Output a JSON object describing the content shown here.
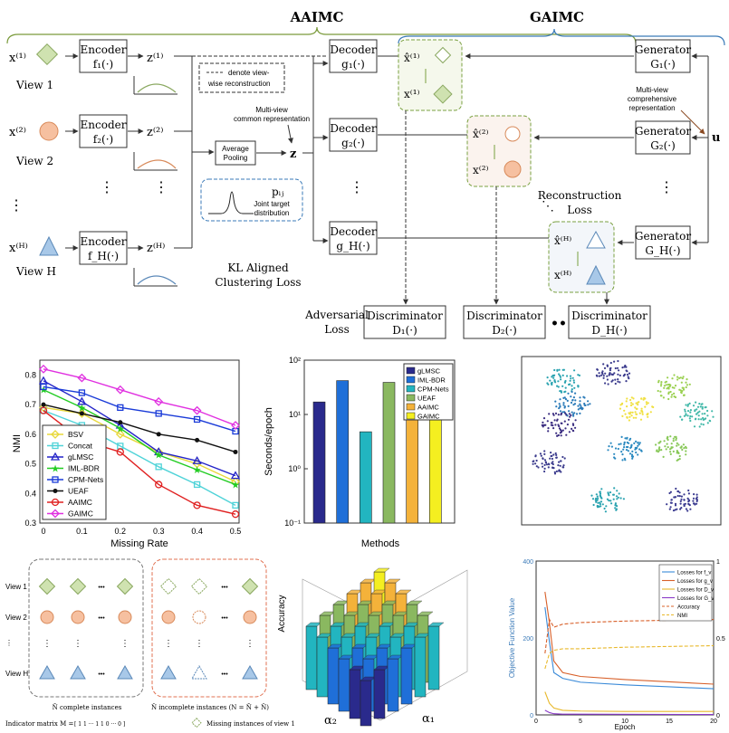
{
  "framework": {
    "title_left": "AAIMC",
    "title_right": "GAIMC",
    "views": [
      {
        "x": "x⁽¹⁾",
        "label": "View 1",
        "encoder": "Encoder",
        "encoder_f": "f₁(·)",
        "z": "z⁽¹⁾"
      },
      {
        "x": "x⁽²⁾",
        "label": "View 2",
        "encoder": "Encoder",
        "encoder_f": "f₂(·)",
        "z": "z⁽²⁾"
      },
      {
        "x": "x⁽ᴴ⁾",
        "label": "View H",
        "encoder": "Encoder",
        "encoder_f": "f_H(·)",
        "z": "z⁽ᴴ⁾"
      }
    ],
    "legend_recon": "denote view-wise reconstruction",
    "common_rep": "Multi-view common representation",
    "z": "z",
    "average_pooling": "Average Pooling",
    "pij": "pᵢⱼ",
    "joint_target": "Joint target distribution",
    "kl_loss": "KL Aligned Clustering Loss",
    "decoders": [
      {
        "name": "Decoder",
        "f": "g₁(·)"
      },
      {
        "name": "Decoder",
        "f": "g₂(·)"
      },
      {
        "name": "Decoder",
        "f": "g_H(·)"
      }
    ],
    "generators": [
      {
        "name": "Generator",
        "f": "G₁(·)"
      },
      {
        "name": "Generator",
        "f": "G₂(·)"
      },
      {
        "name": "Generator",
        "f": "G_H(·)"
      }
    ],
    "comprehensive": "Multi-view comprehensive representation",
    "u": "u",
    "recon_loss": "Reconstruction Loss",
    "adv_loss": "Adversarial Loss",
    "discriminators": [
      {
        "name": "Discriminator",
        "f": "D₁(·)"
      },
      {
        "name": "Discriminator",
        "f": "D₂(·)"
      },
      {
        "name": "Discriminator",
        "f": "D_H(·)"
      }
    ],
    "pairs": [
      {
        "hat": "x̂⁽¹⁾",
        "x": "x⁽¹⁾"
      },
      {
        "hat": "x̂⁽²⁾",
        "x": "x⁽²⁾"
      },
      {
        "hat": "x̂⁽ᴴ⁾",
        "x": "x⁽ᴴ⁾"
      }
    ],
    "vdots": "⋮",
    "dots": "•••"
  },
  "nmi_chart": {
    "type": "line",
    "xlabel": "Missing Rate",
    "ylabel": "NMI",
    "x": [
      0,
      0.1,
      0.2,
      0.3,
      0.4,
      0.5
    ],
    "xticks": [
      "0",
      "0.1",
      "0.2",
      "0.3",
      "0.4",
      "0.5"
    ],
    "yticks": [
      "0.3",
      "0.4",
      "0.5",
      "0.6",
      "0.7",
      "0.8"
    ],
    "ylim": [
      0.3,
      0.85
    ],
    "legend_position": "lower-left",
    "series": [
      {
        "name": "BSV",
        "color": "#e8d83a",
        "marker": "diamond",
        "values": [
          0.69,
          0.67,
          0.6,
          0.54,
          0.5,
          0.44
        ]
      },
      {
        "name": "Concat",
        "color": "#4fd3d8",
        "marker": "square",
        "values": [
          0.68,
          0.63,
          0.56,
          0.49,
          0.43,
          0.36
        ]
      },
      {
        "name": "gLMSC",
        "color": "#2424c8",
        "marker": "triangle",
        "values": [
          0.78,
          0.71,
          0.63,
          0.54,
          0.51,
          0.46
        ]
      },
      {
        "name": "IML-BDR",
        "color": "#22cc22",
        "marker": "star",
        "values": [
          0.75,
          0.69,
          0.62,
          0.53,
          0.48,
          0.43
        ]
      },
      {
        "name": "CPM-Nets",
        "color": "#1a3bd8",
        "marker": "square",
        "values": [
          0.76,
          0.74,
          0.69,
          0.67,
          0.65,
          0.61
        ]
      },
      {
        "name": "UEAF",
        "color": "#111111",
        "marker": "dot",
        "values": [
          0.7,
          0.67,
          0.64,
          0.6,
          0.58,
          0.54
        ]
      },
      {
        "name": "AAIMC",
        "color": "#e02020",
        "marker": "circle",
        "values": [
          0.68,
          0.58,
          0.54,
          0.43,
          0.36,
          0.33
        ]
      },
      {
        "name": "GAIMC",
        "color": "#e030e0",
        "marker": "diamond",
        "values": [
          0.82,
          0.79,
          0.75,
          0.71,
          0.68,
          0.63
        ]
      }
    ]
  },
  "time_chart": {
    "type": "bar",
    "xlabel": "Methods",
    "ylabel": "Seconds/epoch",
    "yscale": "log",
    "yticks": [
      "10⁻¹",
      "10⁰",
      "10¹",
      "10²"
    ],
    "ylim": [
      0.1,
      100
    ],
    "legend_position": "top-right",
    "categories": [
      "gLMSC",
      "IML-BDR",
      "CPM-Nets",
      "UEAF",
      "AAIMC",
      "GAIMC"
    ],
    "values": [
      17,
      42,
      4.8,
      39,
      9.5,
      13
    ],
    "colors": [
      "#2a2a8c",
      "#1f6fd8",
      "#22b5c0",
      "#8ab860",
      "#f4b23a",
      "#f4ef20"
    ]
  },
  "scatter_panel": {
    "clusters": [
      {
        "color": "#2aa3b0"
      },
      {
        "color": "#3a3a8c"
      },
      {
        "color": "#9ad050"
      },
      {
        "color": "#2a7ab8"
      },
      {
        "color": "#f0e040"
      },
      {
        "color": "#40b8a8"
      },
      {
        "color": "#3a2c80"
      },
      {
        "color": "#2c8ac0"
      },
      {
        "color": "#88c858"
      },
      {
        "color": "#3a3a90"
      }
    ]
  },
  "incomplete_panel": {
    "view_labels": [
      "View 1",
      "View 2",
      "⋮",
      "View H"
    ],
    "complete_label": "N̄ complete instances",
    "incomplete_label": "N̂ incomplete instances (N = N̄ + N̂)",
    "indicator": "Indicator matrix M =",
    "missing_note": "Missing instances of view 1",
    "dots": "•••"
  },
  "bar3d_chart": {
    "ylabel": "Accuracy",
    "alpha1": "α₁",
    "alpha2": "α₂",
    "colors": [
      "#2a2a8c",
      "#1f6fd8",
      "#22b5c0",
      "#8ab860",
      "#f4b23a",
      "#f4ef20"
    ]
  },
  "loss_chart": {
    "type": "line",
    "xlabel": "Epoch",
    "ylabel": "Objective Function Value",
    "xticks": [
      "0",
      "5",
      "10",
      "15",
      "20"
    ],
    "yticks_left": [
      "0",
      "200",
      "400"
    ],
    "yticks_right": [
      "0",
      "0.5",
      "1"
    ],
    "legend_position": "top-right",
    "series": [
      {
        "name": "Losses for f_v",
        "color": "#3a8ad8",
        "dash": false
      },
      {
        "name": "Losses for g_v",
        "color": "#d8602a",
        "dash": false
      },
      {
        "name": "Losses for D_v",
        "color": "#e8b82a",
        "dash": false
      },
      {
        "name": "Losses for G_v",
        "color": "#8a3ac8",
        "dash": false
      },
      {
        "name": "Accuracy",
        "color": "#d8602a",
        "dash": true
      },
      {
        "name": "NMI",
        "color": "#e8b82a",
        "dash": true
      }
    ]
  }
}
